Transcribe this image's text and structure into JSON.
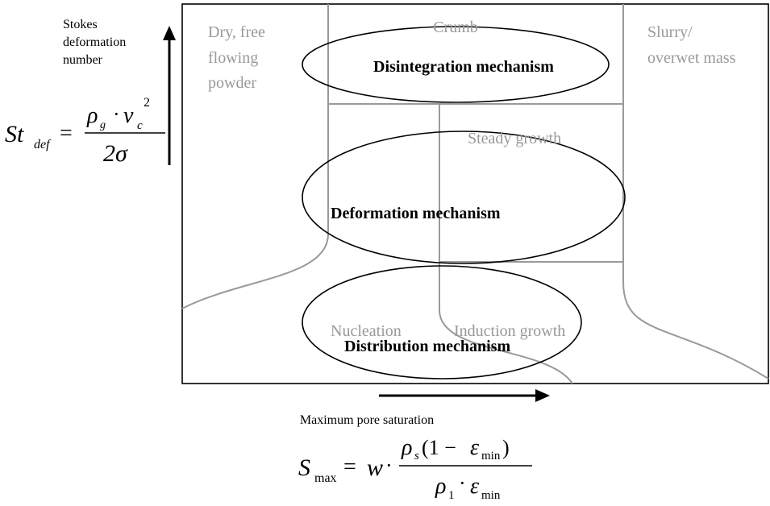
{
  "regions": {
    "crumb": "Crumb",
    "dry": [
      "Dry, free",
      "flowing",
      "powder"
    ],
    "slurry": [
      "Slurry/",
      "overwet mass"
    ],
    "steady": "Steady growth",
    "nucleation": "Nucleation",
    "induction": "Induction growth"
  },
  "mechanisms": [
    "Disintegration mechanism",
    "Deformation mechanism",
    "Distribution mechanism"
  ],
  "y_axis": {
    "label": [
      "Stokes",
      "deformation",
      "number"
    ],
    "formula": [
      "St",
      "def",
      "=",
      "ρ",
      "g",
      "·",
      "ν",
      "c",
      "2",
      "2σ"
    ]
  },
  "x_axis": {
    "label": "Maximum pore saturation",
    "formula": [
      "S",
      "max",
      "=",
      "w",
      "·",
      "ρ",
      "s",
      "(1 − ",
      "ε",
      "min",
      ")",
      "ρ",
      "1",
      "·",
      "ε",
      "min"
    ]
  }
}
